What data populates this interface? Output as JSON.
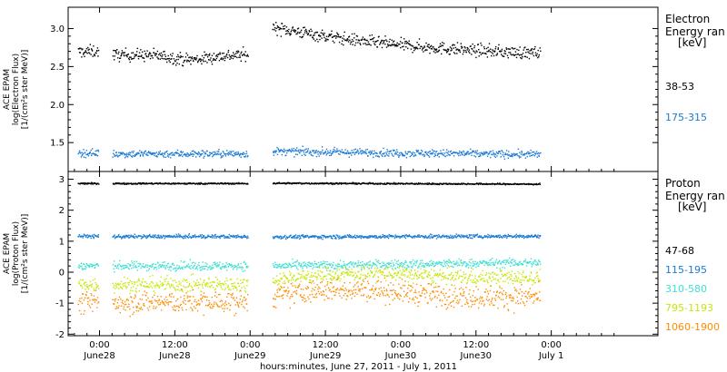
{
  "chart_data": {
    "type": "scatter",
    "x_axis": {
      "title": "hours:minutes, June 27, 2011 - July  1, 2011",
      "range_hours": [
        -5,
        89
      ],
      "ticks": [
        {
          "hour": 0,
          "time": "0:00",
          "date": "June28"
        },
        {
          "hour": 12,
          "time": "12:00",
          "date": "June28"
        },
        {
          "hour": 24,
          "time": "0:00",
          "date": "June29"
        },
        {
          "hour": 36,
          "time": "12:00",
          "date": "June29"
        },
        {
          "hour": 48,
          "time": "0:00",
          "date": "June30"
        },
        {
          "hour": 60,
          "time": "12:00",
          "date": "June30"
        },
        {
          "hour": 72,
          "time": "0:00",
          "date": "July  1"
        }
      ]
    },
    "panels": [
      {
        "id": "electron",
        "ylabel_lines": [
          "ACE EPAM",
          "log(Electron Flux)",
          "[1/(cm²s ster MeV)]"
        ],
        "ylim": [
          1.12,
          3.28
        ],
        "yticks": [
          1.5,
          2.0,
          2.5,
          3.0
        ],
        "ytick_labels": [
          "1.5",
          "2.0",
          "2.5",
          "3.0"
        ],
        "legend_title": [
          "Electron",
          "Energy ran",
          "[keV]"
        ],
        "series": [
          {
            "name": "38-53",
            "color": "#000000",
            "noise": 0.04,
            "segments": [
              {
                "x": [
                  -3.5,
                  -0.2
                ],
                "y": [
                  2.7,
                  2.71
                ]
              },
              {
                "x": [
                  2,
                  23.6
                ],
                "y": [
                  2.66,
                  2.66
                ],
                "dip": {
                  "center": 14.5,
                  "width": 4,
                  "depth": 0.06
                }
              },
              {
                "x": [
                  27.5,
                  70.2
                ],
                "y": [
                  3.03,
                  2.61
                ],
                "curve": 0.8
              }
            ]
          },
          {
            "name": "175-315",
            "color": "#1a7ad4",
            "noise": 0.025,
            "segments": [
              {
                "x": [
                  -3.5,
                  -0.2
                ],
                "y": [
                  1.37,
                  1.37
                ]
              },
              {
                "x": [
                  2,
                  23.6
                ],
                "y": [
                  1.36,
                  1.36
                ]
              },
              {
                "x": [
                  27.5,
                  70.2
                ],
                "y": [
                  1.39,
                  1.35
                ]
              }
            ]
          }
        ]
      },
      {
        "id": "proton",
        "ylabel_lines": [
          "ACE EPAM",
          "log(Proton Flux)",
          "[1/(cm²s ster MeV)]"
        ],
        "ylim": [
          -2.05,
          3.25
        ],
        "yticks": [
          -2,
          -1,
          0,
          1,
          2,
          3
        ],
        "ytick_labels": [
          "-2",
          "-1",
          "0",
          "1",
          "2",
          "3"
        ],
        "legend_title": [
          "Proton",
          "Energy ran",
          "[keV]"
        ],
        "series": [
          {
            "name": "47-68",
            "color": "#000000",
            "noise": 0.012,
            "segments": [
              {
                "x": [
                  -3.5,
                  -0.2
                ],
                "y": [
                  2.88,
                  2.88
                ]
              },
              {
                "x": [
                  2,
                  23.6
                ],
                "y": [
                  2.88,
                  2.88
                ]
              },
              {
                "x": [
                  27.5,
                  70.2
                ],
                "y": [
                  2.89,
                  2.86
                ]
              }
            ]
          },
          {
            "name": "115-195",
            "color": "#1a7ad4",
            "noise": 0.03,
            "segments": [
              {
                "x": [
                  -3.5,
                  -0.2
                ],
                "y": [
                  1.18,
                  1.18
                ]
              },
              {
                "x": [
                  2,
                  23.6
                ],
                "y": [
                  1.17,
                  1.17
                ]
              },
              {
                "x": [
                  27.5,
                  70.2
                ],
                "y": [
                  1.16,
                  1.18
                ]
              }
            ]
          },
          {
            "name": "310-580",
            "color": "#40e0d0",
            "noise": 0.07,
            "segments": [
              {
                "x": [
                  -3.5,
                  -0.2
                ],
                "y": [
                  0.22,
                  0.22
                ]
              },
              {
                "x": [
                  2,
                  23.6
                ],
                "y": [
                  0.22,
                  0.22
                ]
              },
              {
                "x": [
                  27.5,
                  70.2
                ],
                "y": [
                  0.22,
                  0.33
                ]
              }
            ]
          },
          {
            "name": "795-1193",
            "color": "#c8e60a",
            "noise": 0.12,
            "segments": [
              {
                "x": [
                  -3.5,
                  -0.2
                ],
                "y": [
                  -0.38,
                  -0.38
                ]
              },
              {
                "x": [
                  2,
                  23.6
                ],
                "y": [
                  -0.38,
                  -0.38
                ]
              },
              {
                "x": [
                  27.5,
                  70.2
                ],
                "y": [
                  -0.25,
                  -0.15
                ],
                "bump": {
                  "center": 42,
                  "width": 12,
                  "height": 0.2
                }
              }
            ]
          },
          {
            "name": "1060-1900",
            "color": "#ff8c00",
            "noise": 0.18,
            "segments": [
              {
                "x": [
                  -3.5,
                  -0.2
                ],
                "y": [
                  -0.95,
                  -0.95
                ]
              },
              {
                "x": [
                  2,
                  23.6
                ],
                "y": [
                  -0.95,
                  -0.95
                ]
              },
              {
                "x": [
                  27.5,
                  70.2
                ],
                "y": [
                  -0.85,
                  -0.78
                ],
                "bump": {
                  "center": 40,
                  "width": 12,
                  "height": 0.3
                }
              }
            ]
          }
        ]
      }
    ]
  }
}
